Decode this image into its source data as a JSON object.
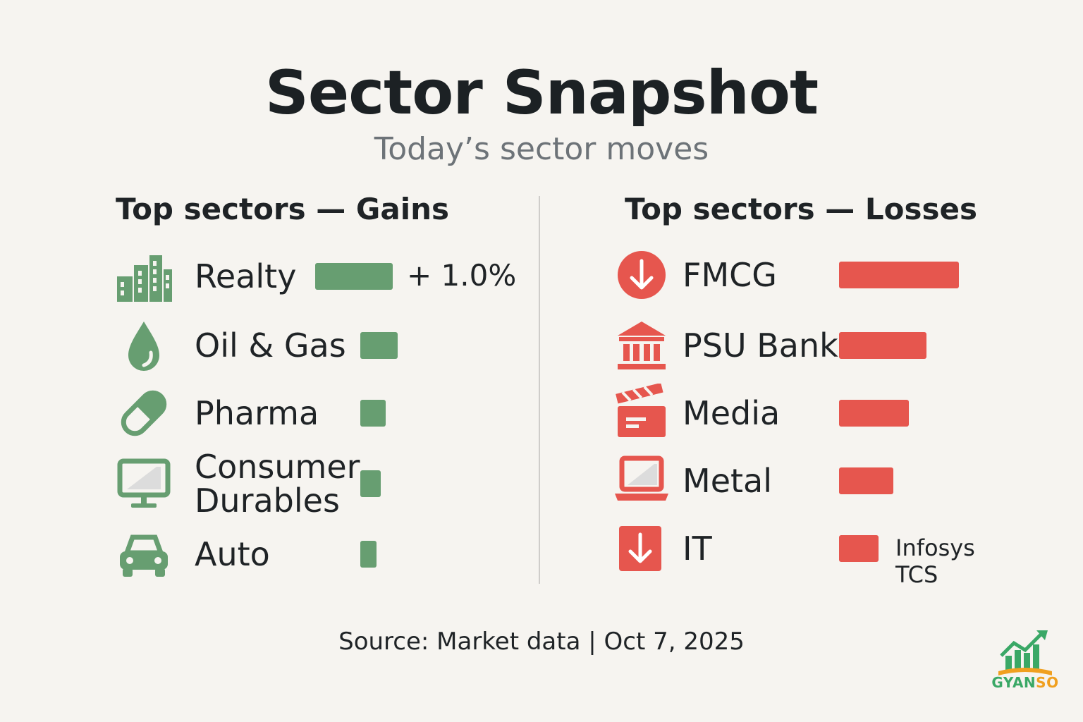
{
  "title": "Sector Snapshot",
  "subtitle": "Today’s sector moves",
  "source": "Source: Market data | Oct 7, 2025",
  "logo_text": {
    "part1": "GYAN",
    "part2": "SO"
  },
  "colors": {
    "gain": "#679e71",
    "loss": "#e6564e",
    "logo_green": "#3aa866",
    "logo_orange": "#f0a020"
  },
  "chart_data": [
    {
      "type": "bar",
      "orientation": "horizontal",
      "title": "Top sectors — Gains",
      "categories": [
        "Realty",
        "Oil & Gas",
        "Pharma",
        "Consumer Durables",
        "Auto"
      ],
      "category_lines": [
        [
          "Realty"
        ],
        [
          "Oil & Gas"
        ],
        [
          "Pharma"
        ],
        [
          "Consumer",
          "Durables"
        ],
        [
          "Auto"
        ]
      ],
      "icons": [
        "buildings-icon",
        "oil-drop-icon",
        "pill-icon",
        "monitor-icon",
        "car-icon"
      ],
      "values": [
        1.0,
        0.48,
        0.33,
        0.26,
        0.21
      ],
      "value_labels": [
        "+ 1.0%",
        "",
        "",
        "",
        ""
      ],
      "unit": "%",
      "color": "#679e71"
    },
    {
      "type": "bar",
      "orientation": "horizontal",
      "title": "Top sectors — Losses",
      "categories": [
        "FMCG",
        "PSU Bank",
        "Media",
        "Metal",
        "IT"
      ],
      "category_lines": [
        [
          "FMCG"
        ],
        [
          "PSU Bank"
        ],
        [
          "Media"
        ],
        [
          "Metal"
        ],
        [
          "IT"
        ]
      ],
      "icons": [
        "down-arrow-circle-icon",
        "bank-icon",
        "clapperboard-icon",
        "laptop-icon",
        "down-arrow-square-icon"
      ],
      "values": [
        1.0,
        0.73,
        0.58,
        0.45,
        0.33
      ],
      "annotations": [
        "",
        "",
        "",
        "",
        "Infosys\nTCS"
      ],
      "color": "#e6564e"
    }
  ]
}
